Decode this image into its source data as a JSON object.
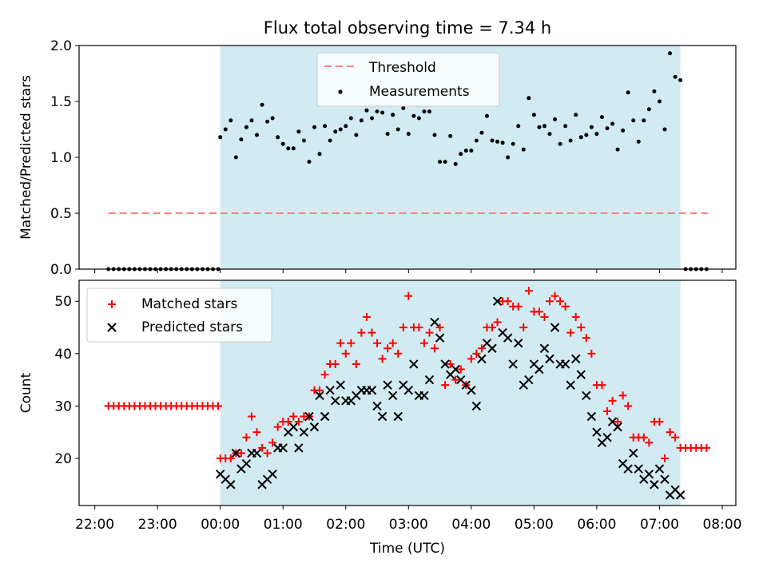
{
  "chart_data": [
    {
      "type": "scatter",
      "title": "Flux total observing time = 7.34 h",
      "ylabel": "Matched/Predicted stars",
      "xlabel": "",
      "xlim": [
        "21:45",
        "08:13"
      ],
      "ylim": [
        0,
        2.0
      ],
      "yticks": [
        "0.0",
        "0.5",
        "1.0",
        "1.5",
        "2.0"
      ],
      "shaded_region": {
        "from": "00:00",
        "to": "07:20",
        "color": "#add8e6"
      },
      "legend_position": "upper center",
      "threshold": {
        "name": "Threshold",
        "value": 0.5,
        "x_from": "22:13",
        "x_to": "07:46",
        "color": "#ff7f7f"
      },
      "series": [
        {
          "name": "Measurements",
          "color": "#000000",
          "marker": "dot",
          "x": [
            "22:13",
            "22:18",
            "22:23",
            "22:28",
            "22:33",
            "22:38",
            "22:43",
            "22:48",
            "22:53",
            "22:58",
            "23:03",
            "23:08",
            "23:13",
            "23:18",
            "23:23",
            "23:28",
            "23:33",
            "23:38",
            "23:43",
            "23:48",
            "23:53",
            "23:58",
            "00:00",
            "00:05",
            "00:10",
            "00:15",
            "00:20",
            "00:25",
            "00:30",
            "00:35",
            "00:40",
            "00:45",
            "00:50",
            "00:55",
            "01:00",
            "01:05",
            "01:10",
            "01:15",
            "01:20",
            "01:25",
            "01:30",
            "01:35",
            "01:40",
            "01:45",
            "01:50",
            "01:55",
            "02:00",
            "02:05",
            "02:10",
            "02:15",
            "02:20",
            "02:25",
            "02:30",
            "02:35",
            "02:40",
            "02:45",
            "02:50",
            "02:55",
            "03:00",
            "03:05",
            "03:10",
            "03:15",
            "03:20",
            "03:25",
            "03:30",
            "03:35",
            "03:40",
            "03:45",
            "03:50",
            "03:55",
            "04:00",
            "04:05",
            "04:10",
            "04:15",
            "04:20",
            "04:25",
            "04:30",
            "04:35",
            "04:40",
            "04:45",
            "04:50",
            "04:55",
            "05:00",
            "05:05",
            "05:10",
            "05:15",
            "05:20",
            "05:25",
            "05:30",
            "05:35",
            "05:40",
            "05:45",
            "05:50",
            "05:55",
            "06:00",
            "06:05",
            "06:10",
            "06:15",
            "06:20",
            "06:25",
            "06:30",
            "06:35",
            "06:40",
            "06:45",
            "06:50",
            "06:55",
            "07:00",
            "07:05",
            "07:10",
            "07:15",
            "07:20",
            "07:25",
            "07:30",
            "07:35",
            "07:40",
            "07:45"
          ],
          "y": [
            0,
            0,
            0,
            0,
            0,
            0,
            0,
            0,
            0,
            0,
            0,
            0,
            0,
            0,
            0,
            0,
            0,
            0,
            0,
            0,
            0,
            0,
            1.18,
            1.25,
            1.33,
            1.0,
            1.16,
            1.27,
            1.33,
            1.2,
            1.47,
            1.32,
            1.35,
            1.18,
            1.12,
            1.08,
            1.08,
            1.23,
            1.15,
            0.96,
            1.27,
            1.03,
            1.28,
            1.15,
            1.23,
            1.25,
            1.28,
            1.35,
            1.2,
            1.33,
            1.42,
            1.35,
            1.41,
            1.4,
            1.21,
            1.38,
            1.25,
            1.44,
            1.21,
            1.37,
            1.35,
            1.41,
            1.41,
            1.2,
            0.96,
            0.96,
            1.19,
            0.94,
            1.03,
            1.06,
            1.06,
            1.15,
            1.22,
            1.37,
            1.15,
            1.14,
            1.13,
            1.0,
            1.12,
            1.28,
            1.07,
            1.53,
            1.38,
            1.27,
            1.28,
            1.21,
            1.34,
            1.12,
            1.28,
            1.15,
            1.38,
            1.18,
            1.2,
            1.27,
            1.21,
            1.36,
            1.26,
            1.3,
            1.07,
            1.24,
            1.58,
            1.33,
            1.14,
            1.33,
            1.43,
            1.59,
            1.5,
            1.25,
            1.93,
            1.72,
            1.69,
            0,
            0,
            0,
            0,
            0
          ]
        }
      ]
    },
    {
      "type": "scatter",
      "title": "",
      "ylabel": "Count",
      "xlabel": "Time (UTC)",
      "xlim": [
        "21:45",
        "08:13"
      ],
      "ylim": [
        11,
        54
      ],
      "yticks": [
        "20",
        "30",
        "40",
        "50"
      ],
      "xticks": [
        "22:00",
        "23:00",
        "00:00",
        "01:00",
        "02:00",
        "03:00",
        "04:00",
        "05:00",
        "06:00",
        "07:00",
        "08:00"
      ],
      "shaded_region": {
        "from": "00:00",
        "to": "07:20",
        "color": "#add8e6"
      },
      "legend_position": "upper left",
      "series": [
        {
          "name": "Matched stars",
          "color": "#ff0000",
          "marker": "plus",
          "x": [
            "22:13",
            "22:18",
            "22:23",
            "22:28",
            "22:33",
            "22:38",
            "22:43",
            "22:48",
            "22:53",
            "22:58",
            "23:03",
            "23:08",
            "23:13",
            "23:18",
            "23:23",
            "23:28",
            "23:33",
            "23:38",
            "23:43",
            "23:48",
            "23:53",
            "23:58",
            "00:00",
            "00:05",
            "00:10",
            "00:15",
            "00:20",
            "00:25",
            "00:30",
            "00:35",
            "00:40",
            "00:45",
            "00:50",
            "00:55",
            "01:00",
            "01:05",
            "01:10",
            "01:15",
            "01:20",
            "01:25",
            "01:30",
            "01:35",
            "01:40",
            "01:45",
            "01:50",
            "01:55",
            "02:00",
            "02:05",
            "02:10",
            "02:15",
            "02:20",
            "02:25",
            "02:30",
            "02:35",
            "02:40",
            "02:45",
            "02:50",
            "02:55",
            "03:00",
            "03:05",
            "03:10",
            "03:15",
            "03:20",
            "03:25",
            "03:30",
            "03:35",
            "03:40",
            "03:45",
            "03:50",
            "03:55",
            "04:00",
            "04:05",
            "04:10",
            "04:15",
            "04:20",
            "04:25",
            "04:30",
            "04:35",
            "04:40",
            "04:45",
            "04:50",
            "04:55",
            "05:00",
            "05:05",
            "05:10",
            "05:15",
            "05:20",
            "05:25",
            "05:30",
            "05:35",
            "05:40",
            "05:45",
            "05:50",
            "05:55",
            "06:00",
            "06:05",
            "06:10",
            "06:15",
            "06:20",
            "06:25",
            "06:30",
            "06:35",
            "06:40",
            "06:45",
            "06:50",
            "06:55",
            "07:00",
            "07:05",
            "07:10",
            "07:15",
            "07:20",
            "07:25",
            "07:30",
            "07:35",
            "07:40",
            "07:45"
          ],
          "y": [
            30,
            30,
            30,
            30,
            30,
            30,
            30,
            30,
            30,
            30,
            30,
            30,
            30,
            30,
            30,
            30,
            30,
            30,
            30,
            30,
            30,
            30,
            20,
            20,
            20,
            21,
            21,
            24,
            28,
            25,
            22,
            21,
            23,
            26,
            27,
            27,
            28,
            27,
            28,
            28,
            33,
            33,
            36,
            38,
            38,
            42,
            40,
            42,
            38,
            44,
            47,
            44,
            42,
            39,
            41,
            42,
            40,
            45,
            51,
            45,
            45,
            42,
            44,
            41,
            45,
            34,
            38,
            35,
            37,
            34,
            39,
            40,
            41,
            45,
            45,
            46,
            50,
            50,
            49,
            49,
            45,
            52,
            48,
            48,
            47,
            50,
            51,
            50,
            49,
            44,
            47,
            45,
            43,
            40,
            34,
            34,
            29,
            31,
            27,
            32,
            30,
            24,
            24,
            24,
            23,
            27,
            27,
            20,
            25,
            24,
            22,
            22,
            22,
            22,
            22,
            22
          ]
        },
        {
          "name": "Predicted stars",
          "color": "#000000",
          "marker": "x",
          "x": [
            "00:00",
            "00:05",
            "00:10",
            "00:15",
            "00:20",
            "00:25",
            "00:30",
            "00:35",
            "00:40",
            "00:45",
            "00:50",
            "00:55",
            "01:00",
            "01:05",
            "01:10",
            "01:15",
            "01:20",
            "01:25",
            "01:30",
            "01:35",
            "01:40",
            "01:45",
            "01:50",
            "01:55",
            "02:00",
            "02:05",
            "02:10",
            "02:15",
            "02:20",
            "02:25",
            "02:30",
            "02:35",
            "02:40",
            "02:45",
            "02:50",
            "02:55",
            "03:00",
            "03:05",
            "03:10",
            "03:15",
            "03:20",
            "03:25",
            "03:30",
            "03:35",
            "03:40",
            "03:45",
            "03:50",
            "03:55",
            "04:00",
            "04:05",
            "04:10",
            "04:15",
            "04:20",
            "04:25",
            "04:30",
            "04:35",
            "04:40",
            "04:45",
            "04:50",
            "04:55",
            "05:00",
            "05:05",
            "05:10",
            "05:15",
            "05:20",
            "05:25",
            "05:30",
            "05:35",
            "05:40",
            "05:45",
            "05:50",
            "05:55",
            "06:00",
            "06:05",
            "06:10",
            "06:15",
            "06:20",
            "06:25",
            "06:30",
            "06:35",
            "06:40",
            "06:45",
            "06:50",
            "06:55",
            "07:00",
            "07:05",
            "07:10",
            "07:15",
            "07:20"
          ],
          "y": [
            17,
            16,
            15,
            21,
            18,
            19,
            21,
            21,
            15,
            16,
            17,
            22,
            22,
            25,
            26,
            22,
            25,
            28,
            26,
            32,
            28,
            33,
            31,
            34,
            31,
            31,
            32,
            33,
            33,
            33,
            30,
            28,
            34,
            32,
            28,
            34,
            33,
            38,
            32,
            32,
            35,
            46,
            43,
            38,
            36,
            37,
            35,
            34,
            33,
            30,
            39,
            42,
            41,
            50,
            44,
            43,
            38,
            42,
            34,
            35,
            38,
            37,
            41,
            39,
            45,
            38,
            38,
            34,
            39,
            36,
            32,
            28,
            25,
            23,
            24,
            27,
            26,
            19,
            18,
            21,
            18,
            16,
            17,
            15,
            18,
            16,
            13,
            14,
            13
          ]
        }
      ]
    }
  ]
}
